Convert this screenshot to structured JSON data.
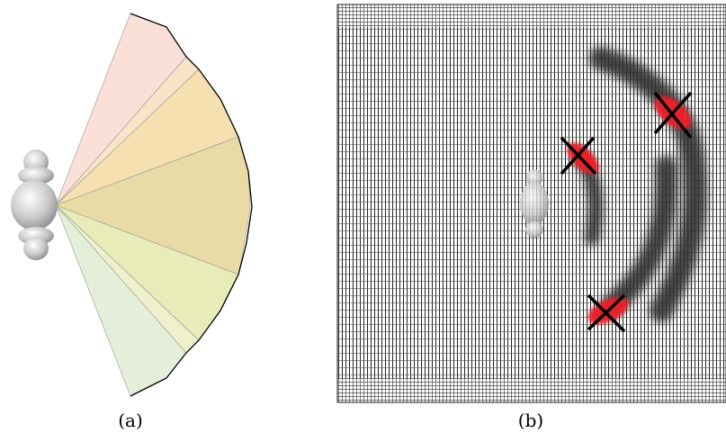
{
  "panels": [
    {
      "caption": "(a)"
    },
    {
      "caption": "(b)"
    }
  ]
}
